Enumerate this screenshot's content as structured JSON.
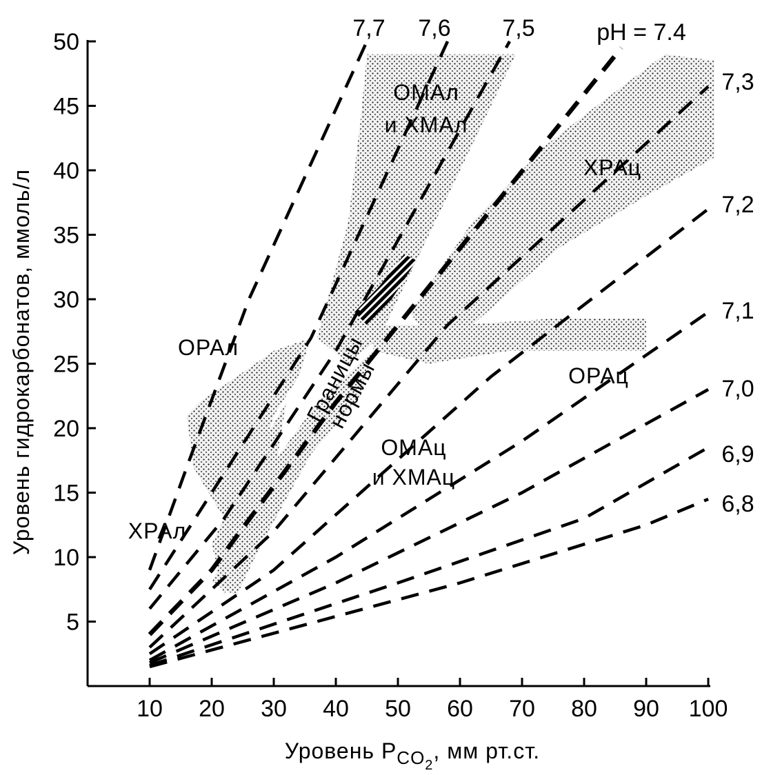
{
  "chart_data": {
    "type": "line",
    "title": "",
    "xlabel": "Уровень P",
    "xlabel_sub": "CO",
    "xlabel_sub2": "2",
    "xlabel_unit": ", мм рт.ст.",
    "ylabel": "Уровень гидрокарбонатов, ммоль/л",
    "xlim": [
      0,
      100
    ],
    "ylim": [
      0,
      50
    ],
    "xticks": [
      10,
      20,
      30,
      40,
      50,
      60,
      70,
      80,
      90,
      100
    ],
    "yticks": [
      5,
      10,
      15,
      20,
      25,
      30,
      35,
      40,
      45,
      50
    ],
    "grid": false,
    "line_style": "dashed",
    "color": "#000000",
    "series": [
      {
        "name": "7,7",
        "points": [
          [
            10,
            9
          ],
          [
            16,
            17
          ],
          [
            26,
            30
          ],
          [
            45,
            50
          ]
        ]
      },
      {
        "name": "7,6",
        "points": [
          [
            10,
            7.5
          ],
          [
            20,
            15
          ],
          [
            36,
            27
          ],
          [
            58,
            50
          ]
        ]
      },
      {
        "name": "7,5",
        "points": [
          [
            10,
            6
          ],
          [
            22,
            13
          ],
          [
            40,
            26
          ],
          [
            68,
            50
          ]
        ]
      },
      {
        "name": "pH = 7.4",
        "points": [
          [
            10,
            4
          ],
          [
            20,
            9
          ],
          [
            40,
            22
          ],
          [
            86,
            49.5
          ]
        ]
      },
      {
        "name": "7,3",
        "points": [
          [
            10,
            3
          ],
          [
            30,
            12
          ],
          [
            58,
            28
          ],
          [
            100,
            46.5
          ]
        ]
      },
      {
        "name": "7,2",
        "points": [
          [
            10,
            2.5
          ],
          [
            30,
            9
          ],
          [
            65,
            24
          ],
          [
            100,
            37
          ]
        ]
      },
      {
        "name": "7,1",
        "points": [
          [
            10,
            2
          ],
          [
            40,
            10
          ],
          [
            70,
            19
          ],
          [
            100,
            29
          ]
        ]
      },
      {
        "name": "7,0",
        "points": [
          [
            10,
            1.8
          ],
          [
            40,
            8
          ],
          [
            70,
            15
          ],
          [
            100,
            23
          ]
        ]
      },
      {
        "name": "6,9",
        "points": [
          [
            10,
            1.6
          ],
          [
            50,
            8
          ],
          [
            80,
            13
          ],
          [
            100,
            18.5
          ]
        ]
      },
      {
        "name": "6,8",
        "points": [
          [
            10,
            1.5
          ],
          [
            60,
            8
          ],
          [
            90,
            12.5
          ],
          [
            100,
            14.5
          ]
        ]
      }
    ],
    "regions": [
      {
        "name": "ОМАл и ХМАл",
        "label_lines": [
          "ОМАл",
          "и ХМАл"
        ],
        "polygon": [
          [
            37,
            27
          ],
          [
            42,
            36
          ],
          [
            44,
            44
          ],
          [
            45,
            49
          ],
          [
            69,
            49
          ],
          [
            60,
            40
          ],
          [
            52,
            32
          ],
          [
            47,
            27
          ],
          [
            42,
            25
          ]
        ]
      },
      {
        "name": "ХРАц",
        "label_lines": [
          "ХРАц"
        ],
        "polygon": [
          [
            52,
            29
          ],
          [
            62,
            36
          ],
          [
            74,
            42
          ],
          [
            82,
            45
          ],
          [
            93,
            49
          ],
          [
            101,
            48.5
          ],
          [
            101,
            41
          ],
          [
            90,
            38
          ],
          [
            76,
            34
          ],
          [
            62,
            28
          ],
          [
            56,
            26
          ]
        ]
      },
      {
        "name": "ОРАц",
        "label_lines": [
          "ОРАц"
        ],
        "polygon": [
          [
            46,
            28
          ],
          [
            60,
            28
          ],
          [
            75,
            28.5
          ],
          [
            90,
            28.5
          ],
          [
            90,
            26
          ],
          [
            68,
            26
          ],
          [
            55,
            25
          ],
          [
            46,
            26
          ]
        ]
      },
      {
        "name": "ОМАц и ХМАц",
        "label_lines": [
          "ОМАц",
          "и ХМАц"
        ],
        "polygon": [
          [
            20,
            8
          ],
          [
            28,
            16
          ],
          [
            37,
            22
          ],
          [
            46,
            26
          ],
          [
            44,
            22.5
          ],
          [
            36,
            18
          ],
          [
            28,
            11
          ],
          [
            24,
            7
          ]
        ]
      },
      {
        "name": "ОРАл",
        "label_lines": [
          "ОРАл"
        ],
        "polygon": [
          [
            16,
            21
          ],
          [
            18,
            22
          ],
          [
            24,
            24
          ],
          [
            30,
            26
          ],
          [
            36,
            27
          ],
          [
            34,
            24
          ],
          [
            30,
            21
          ],
          [
            27,
            16
          ],
          [
            22,
            13
          ],
          [
            17,
            17
          ]
        ]
      },
      {
        "name": "ХРАл",
        "label_lines": [
          "ХРАл"
        ],
        "polygon": [
          [
            20,
            11
          ],
          [
            26,
            17
          ],
          [
            32,
            22
          ],
          [
            30,
            16
          ],
          [
            25,
            11
          ],
          [
            22,
            7
          ]
        ]
      },
      {
        "name": "Границы нормы",
        "label_lines": [
          "Границы",
          "нормы"
        ],
        "polygon": [
          [
            43,
            29
          ],
          [
            47,
            31
          ],
          [
            51,
            33.5
          ],
          [
            53,
            33
          ],
          [
            49,
            30
          ],
          [
            45,
            28
          ]
        ]
      }
    ],
    "labels": {
      "ph_series": [
        "7,7",
        "7,6",
        "7,5",
        "pH = 7.4",
        "7,3",
        "7,2",
        "7,1",
        "7,0",
        "6,9",
        "6,8"
      ]
    }
  }
}
